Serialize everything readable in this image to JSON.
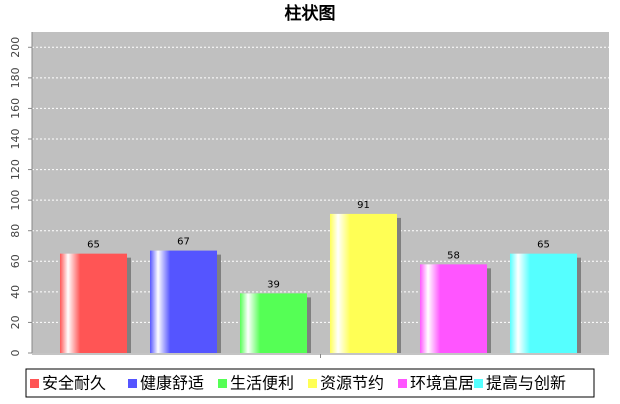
{
  "chart_data": {
    "type": "bar",
    "title": "柱状图",
    "categories": [
      null
    ],
    "series": [
      {
        "name": "安全耐久",
        "color": "#ff5555",
        "values": [
          65
        ]
      },
      {
        "name": "健康舒适",
        "color": "#5555ff",
        "values": [
          67
        ]
      },
      {
        "name": "生活便利",
        "color": "#55ff55",
        "values": [
          39
        ]
      },
      {
        "name": "资源节约",
        "color": "#ffff55",
        "values": [
          91
        ]
      },
      {
        "name": "环境宜居",
        "color": "#ff55ff",
        "values": [
          58
        ]
      },
      {
        "name": "提高与创新",
        "color": "#55ffff",
        "values": [
          65
        ]
      }
    ],
    "ylim": [
      0,
      210
    ],
    "yticks": [
      0,
      20,
      40,
      60,
      80,
      100,
      120,
      140,
      160,
      180,
      200
    ],
    "grid": true,
    "legend": "bottom"
  }
}
